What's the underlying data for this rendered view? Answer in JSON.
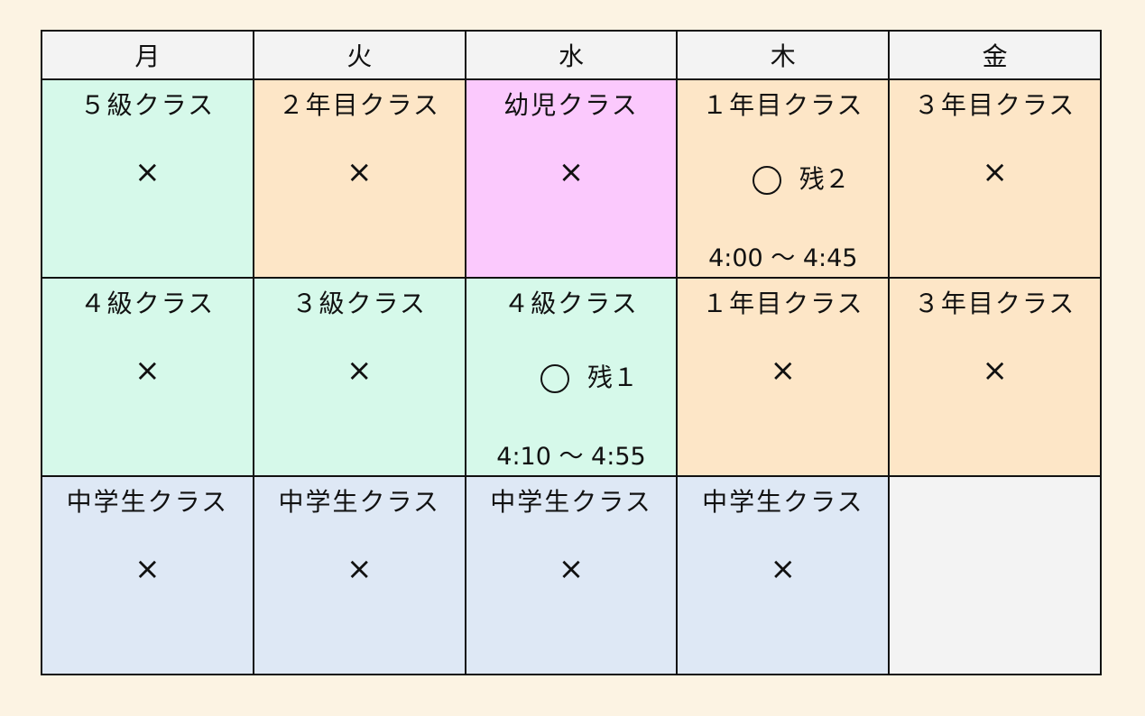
{
  "colors": {
    "background": "#fcf3e3",
    "header": "#f3f3f3",
    "green": "#d6f9ea",
    "orange": "#fde6c7",
    "pink": "#fbc9fd",
    "blue": "#dee8f5"
  },
  "days": [
    "月",
    "火",
    "水",
    "木",
    "金"
  ],
  "rows": [
    [
      {
        "label": "５級クラス",
        "mark": "×"
      },
      {
        "label": "２年目クラス",
        "mark": "×"
      },
      {
        "label": "幼児クラス",
        "mark": "×"
      },
      {
        "label": "１年目クラス",
        "remaining": "残２",
        "time": "4:00 〜 4:45"
      },
      {
        "label": "３年目クラス",
        "mark": "×"
      }
    ],
    [
      {
        "label": "４級クラス",
        "mark": "×"
      },
      {
        "label": "３級クラス",
        "mark": "×"
      },
      {
        "label": "４級クラス",
        "remaining": "残１",
        "time": "4:10 〜 4:55"
      },
      {
        "label": "１年目クラス",
        "mark": "×"
      },
      {
        "label": "３年目クラス",
        "mark": "×"
      }
    ],
    [
      {
        "label": "中学生クラス",
        "mark": "×"
      },
      {
        "label": "中学生クラス",
        "mark": "×"
      },
      {
        "label": "中学生クラス",
        "mark": "×"
      },
      {
        "label": "中学生クラス",
        "mark": "×"
      }
    ]
  ]
}
